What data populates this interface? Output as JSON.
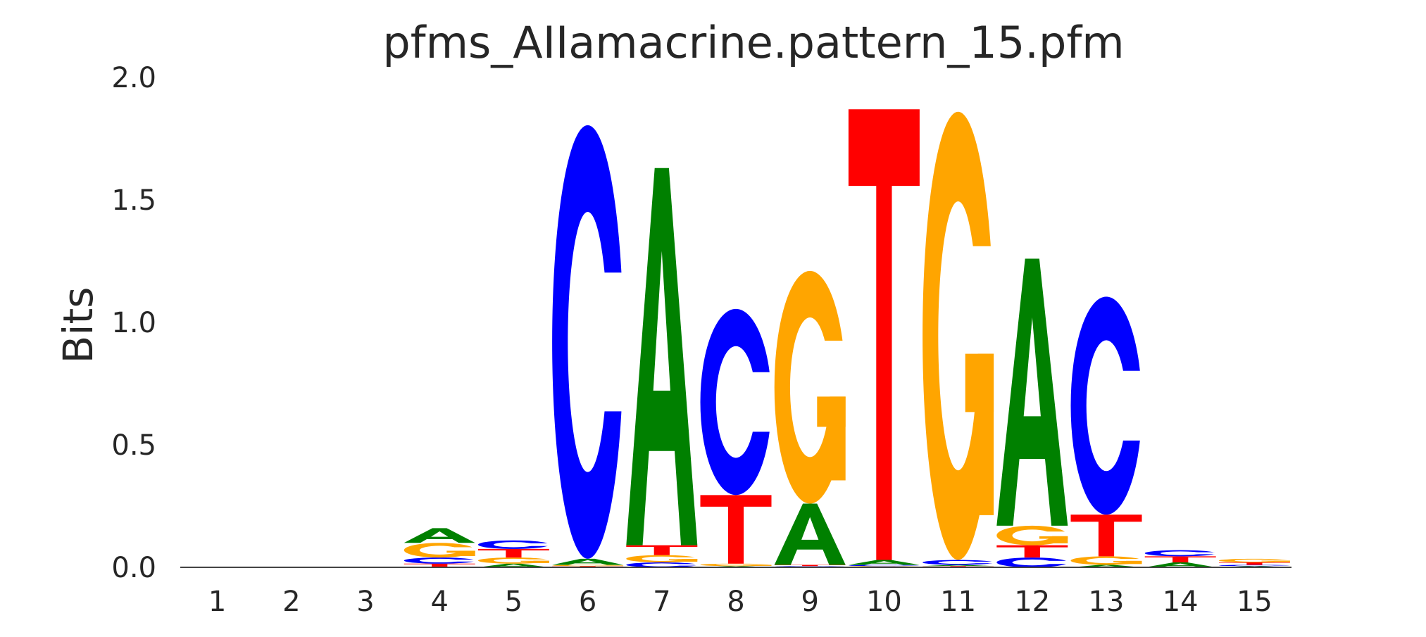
{
  "chart_data": {
    "type": "sequence-logo",
    "title": "pfms_AIIamacrine.pattern_15.pfm",
    "ylabel": "Bits",
    "xlabel": "",
    "ylim": [
      0,
      2.0
    ],
    "yticks": [
      "0.0",
      "0.5",
      "1.0",
      "1.5",
      "2.0"
    ],
    "positions": [
      "1",
      "2",
      "3",
      "4",
      "5",
      "6",
      "7",
      "8",
      "9",
      "10",
      "11",
      "12",
      "13",
      "14",
      "15"
    ],
    "colors": {
      "A": "#008000",
      "C": "#0000ff",
      "G": "#ffa500",
      "T": "#ff0000"
    },
    "stacks": [
      [],
      [],
      [],
      [
        {
          "letter": "T",
          "bits": 0.015
        },
        {
          "letter": "C",
          "bits": 0.025
        },
        {
          "letter": "G",
          "bits": 0.06
        },
        {
          "letter": "A",
          "bits": 0.06
        }
      ],
      [
        {
          "letter": "A",
          "bits": 0.015
        },
        {
          "letter": "G",
          "bits": 0.025
        },
        {
          "letter": "T",
          "bits": 0.035
        },
        {
          "letter": "C",
          "bits": 0.035
        }
      ],
      [
        {
          "letter": "T",
          "bits": 0.005
        },
        {
          "letter": "G",
          "bits": 0.005
        },
        {
          "letter": "A",
          "bits": 0.025
        },
        {
          "letter": "C",
          "bits": 1.77
        }
      ],
      [
        {
          "letter": "C",
          "bits": 0.02
        },
        {
          "letter": "G",
          "bits": 0.03
        },
        {
          "letter": "T",
          "bits": 0.04
        },
        {
          "letter": "A",
          "bits": 1.54
        }
      ],
      [
        {
          "letter": "A",
          "bits": 0.005
        },
        {
          "letter": "G",
          "bits": 0.01
        },
        {
          "letter": "T",
          "bits": 0.28
        },
        {
          "letter": "C",
          "bits": 0.76
        }
      ],
      [
        {
          "letter": "C",
          "bits": 0.005
        },
        {
          "letter": "T",
          "bits": 0.005
        },
        {
          "letter": "A",
          "bits": 0.25
        },
        {
          "letter": "G",
          "bits": 0.95
        }
      ],
      [
        {
          "letter": "G",
          "bits": 0.005
        },
        {
          "letter": "C",
          "bits": 0.005
        },
        {
          "letter": "A",
          "bits": 0.02
        },
        {
          "letter": "T",
          "bits": 1.84
        }
      ],
      [
        {
          "letter": "T",
          "bits": 0.005
        },
        {
          "letter": "A",
          "bits": 0.005
        },
        {
          "letter": "C",
          "bits": 0.02
        },
        {
          "letter": "G",
          "bits": 1.83
        }
      ],
      [
        {
          "letter": "C",
          "bits": 0.04
        },
        {
          "letter": "T",
          "bits": 0.05
        },
        {
          "letter": "G",
          "bits": 0.08
        },
        {
          "letter": "A",
          "bits": 1.09
        }
      ],
      [
        {
          "letter": "A",
          "bits": 0.01
        },
        {
          "letter": "G",
          "bits": 0.035
        },
        {
          "letter": "T",
          "bits": 0.17
        },
        {
          "letter": "C",
          "bits": 0.89
        }
      ],
      [
        {
          "letter": "A",
          "bits": 0.02
        },
        {
          "letter": "T",
          "bits": 0.025
        },
        {
          "letter": "C",
          "bits": 0.025
        }
      ],
      [
        {
          "letter": "A",
          "bits": 0.005
        },
        {
          "letter": "C",
          "bits": 0.005
        },
        {
          "letter": "T",
          "bits": 0.01
        },
        {
          "letter": "G",
          "bits": 0.015
        }
      ]
    ]
  }
}
